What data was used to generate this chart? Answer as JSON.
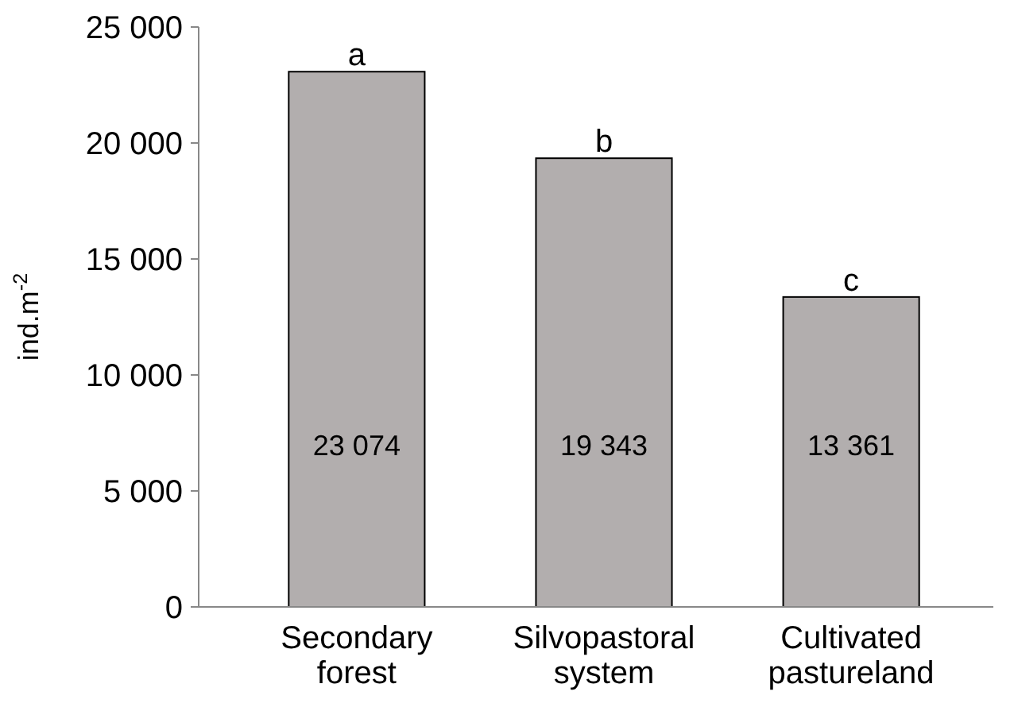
{
  "chart_data": {
    "type": "bar",
    "ylabel": "ind.m$^{-2}$",
    "categories": [
      "Secondary forest",
      "Silvopastoral system",
      "Cultivated pastureland"
    ],
    "values": [
      23074,
      19343,
      13361
    ],
    "color": "#b2aeae",
    "value_labels": [
      "23 074",
      "19 343",
      "13 361"
    ],
    "ylim": [
      0,
      25000
    ],
    "yticks": [
      {
        "value": 0,
        "label": "0"
      },
      {
        "value": 5000,
        "label": "5 000"
      },
      {
        "value": 10000,
        "label": "10 000"
      },
      {
        "value": 15000,
        "label": "15 000"
      },
      {
        "value": 20000,
        "label": "20 000"
      },
      {
        "value": 25000,
        "label": "25 000"
      }
    ],
    "annotations": [
      {
        "text": "a",
        "x": "Secondary forest",
        "y": 23074
      },
      {
        "text": "b",
        "x": "Silvopastoral system",
        "y": 19343
      },
      {
        "text": "c",
        "x": "Cultivated pastureland",
        "y": 13361
      }
    ],
    "grid": false
  }
}
